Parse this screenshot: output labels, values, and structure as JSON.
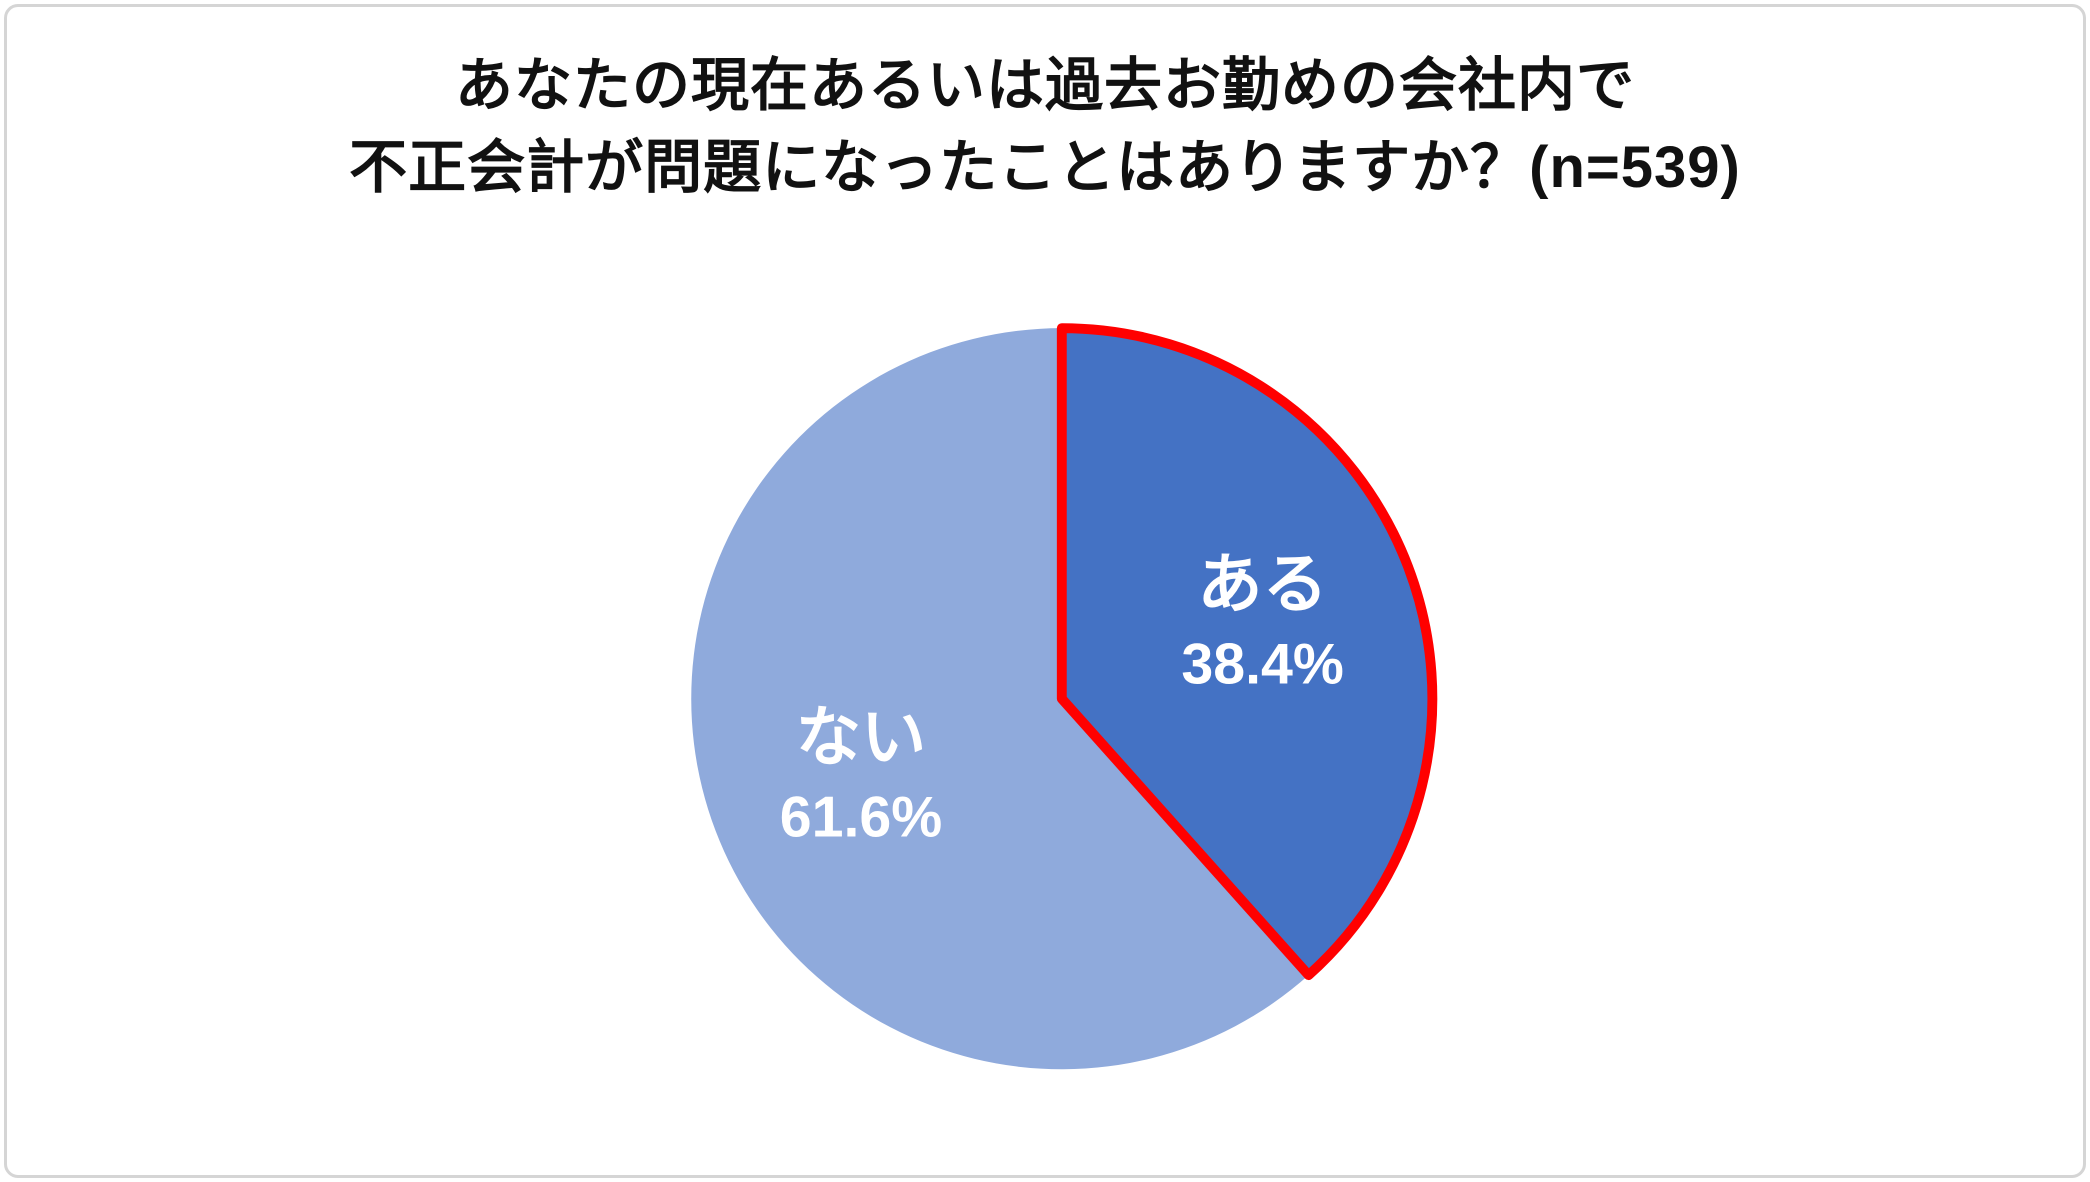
{
  "page": {
    "background": "#ffffff",
    "card_border_color": "#d5d5d5"
  },
  "chart_data": {
    "type": "pie",
    "title": "あなたの現在あるいは過去お勤めの会社内で不正会計が問題になったことはありますか？(n=539)",
    "title_lines": [
      "あなたの現在あるいは過去お勤めの会社内で",
      "不正会計が問題になったことはありますか？(n=539)"
    ],
    "sample_label": "n=539",
    "sample_size": 539,
    "start_angle_deg": 0,
    "direction": "clockwise",
    "legend": "none",
    "label_color": "#ffffff",
    "slices": [
      {
        "label": "ある",
        "value": 38.4,
        "display_value": "38.4%",
        "color": "#4472C4",
        "outline": "#FF0000",
        "outline_width": 10
      },
      {
        "label": "ない",
        "value": 61.6,
        "display_value": "61.6%",
        "color": "#8FAADC",
        "outline": null,
        "outline_width": 0
      }
    ]
  }
}
